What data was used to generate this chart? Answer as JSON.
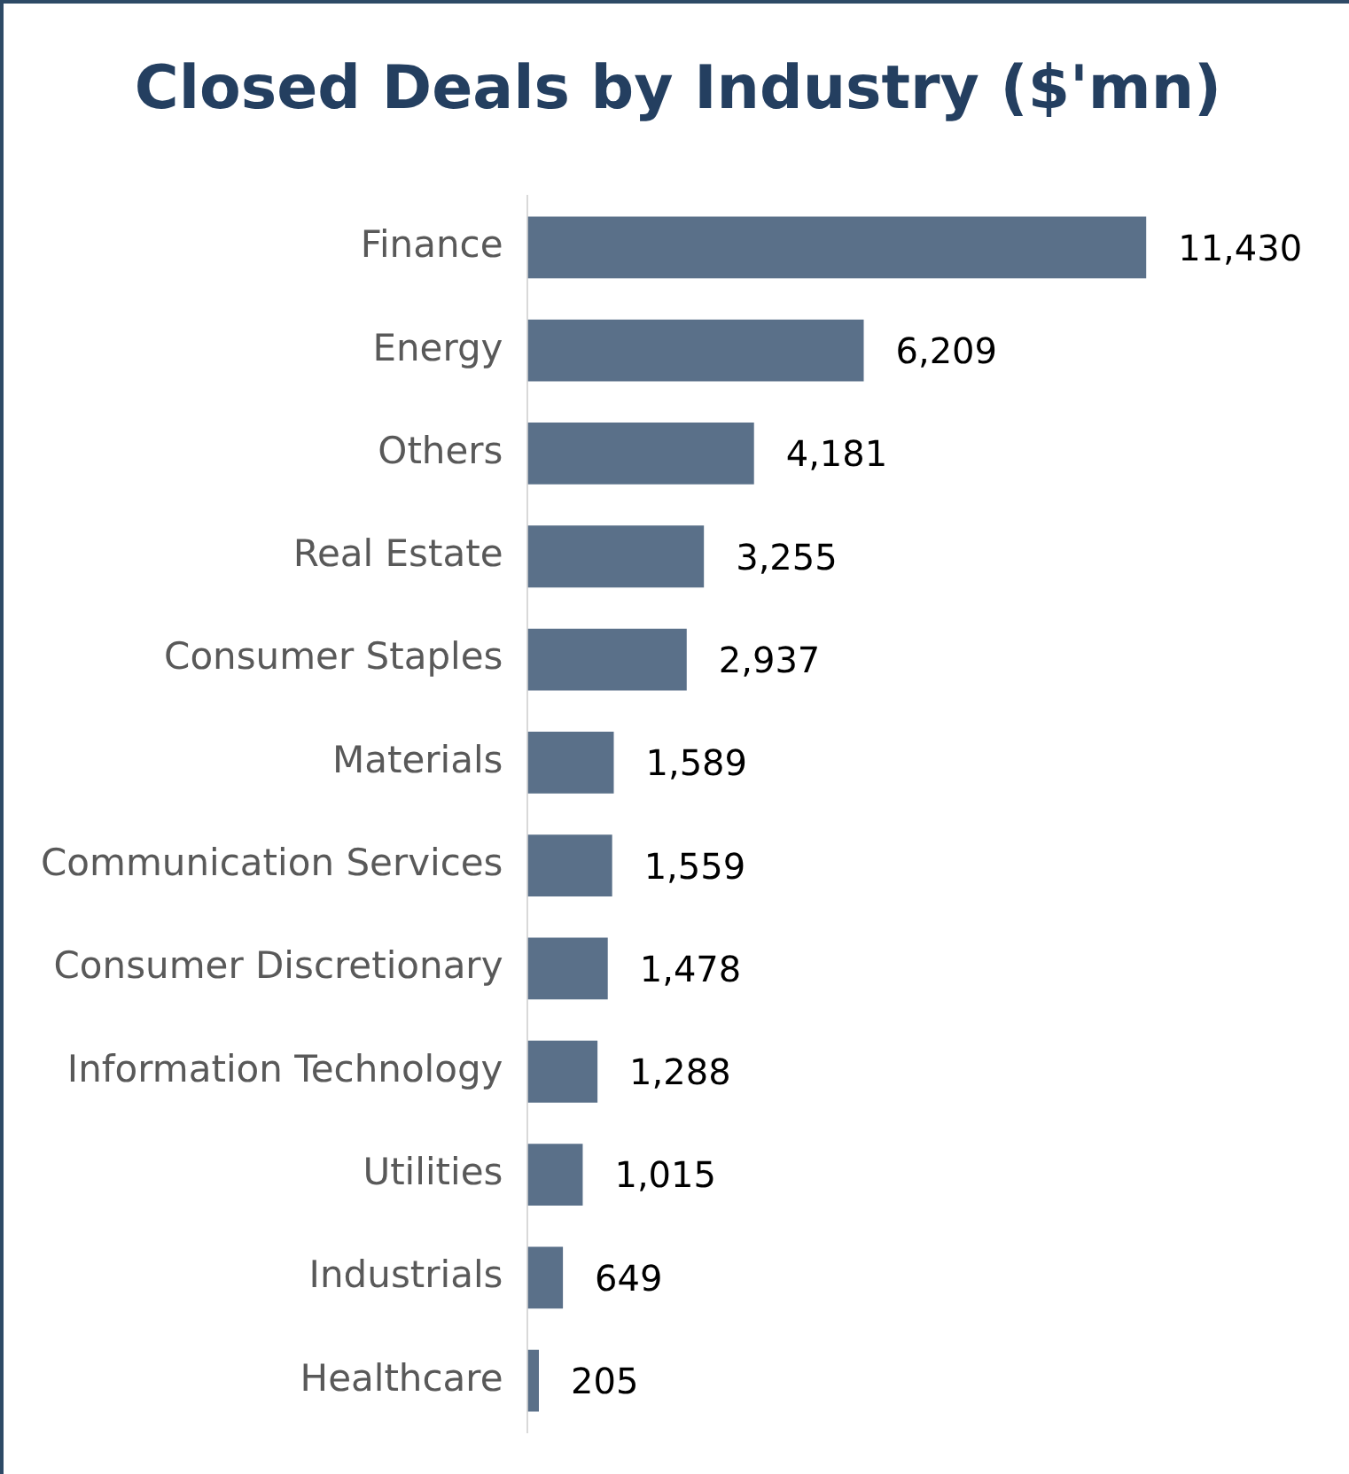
{
  "chart_data": {
    "type": "bar",
    "orientation": "horizontal",
    "title": "Closed Deals by Industry ($'mn)",
    "categories": [
      "Finance",
      "Energy",
      "Others",
      "Real Estate",
      "Consumer Staples",
      "Materials",
      "Communication Services",
      "Consumer Discretionary",
      "Information Technology",
      "Utilities",
      "Industrials",
      "Healthcare"
    ],
    "values": [
      11430,
      6209,
      4181,
      3255,
      2937,
      1589,
      1559,
      1478,
      1288,
      1015,
      649,
      205
    ],
    "value_labels": [
      "11,430",
      "6,209",
      "4,181",
      "3,255",
      "2,937",
      "1,589",
      "1,559",
      "1,478",
      "1,288",
      "1,015",
      "649",
      "205"
    ],
    "color": "#5a7089",
    "grid": false,
    "legend": false
  }
}
